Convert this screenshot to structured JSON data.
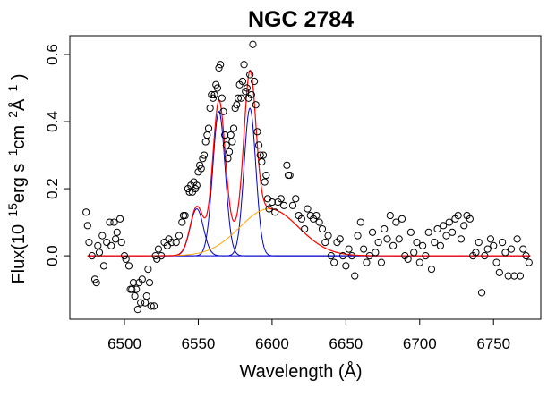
{
  "chart_data": {
    "type": "scatter",
    "title": "NGC 2784",
    "x_label": "Wavelength (Å)",
    "y_label": [
      {
        "text": "Flux(10"
      },
      {
        "text": "−15",
        "sup": true
      },
      {
        "text": "erg s"
      },
      {
        "text": "−1",
        "sup": true
      },
      {
        "text": "cm"
      },
      {
        "text": "−2",
        "sup": true
      },
      {
        "text": "Å"
      },
      {
        "text": "−1",
        "sup": true
      },
      {
        "text": " )"
      }
    ],
    "xlim": [
      6463,
      6782
    ],
    "ylim": [
      -0.189,
      0.656
    ],
    "xticks": [
      6500,
      6550,
      6600,
      6650,
      6700,
      6750
    ],
    "yticks": [
      {
        "value": 0,
        "label": "0.0"
      },
      0.2,
      0.4,
      0.6
    ],
    "series": [
      {
        "color": "#000000",
        "x": [
          6474,
          6475,
          6476,
          6478,
          6480,
          6481,
          6482,
          6483,
          6485,
          6486,
          6488,
          6490,
          6491,
          6493,
          6494,
          6495,
          6497,
          6498,
          6500,
          6501,
          6503,
          6504,
          6505,
          6506,
          6507,
          6508,
          6509,
          6510,
          6511,
          6512,
          6514,
          6515,
          6516,
          6517,
          6518,
          6520,
          6521,
          6522,
          6523,
          6525,
          6527,
          6529,
          6530,
          6532,
          6535,
          6537,
          6539,
          6540,
          6541,
          6543,
          6544,
          6545,
          6546,
          6547,
          6548,
          6549,
          6550,
          6551,
          6552,
          6553,
          6554,
          6555,
          6556,
          6557,
          6558,
          6559,
          6560,
          6561,
          6562,
          6563,
          6564,
          6565,
          6566,
          6567,
          6568,
          6569,
          6570,
          6571,
          6572,
          6573,
          6574,
          6575,
          6576,
          6577,
          6578,
          6579,
          6580,
          6581,
          6582,
          6583,
          6584,
          6585,
          6586,
          6587,
          6588,
          6589,
          6590,
          6591,
          6592,
          6593,
          6594,
          6595,
          6596,
          6597,
          6598,
          6600,
          6602,
          6604,
          6606,
          6608,
          6610,
          6611,
          6612,
          6614,
          6616,
          6618,
          6620,
          6622,
          6624,
          6626,
          6628,
          6630,
          6632,
          6634,
          6636,
          6638,
          6640,
          6642,
          6644,
          6646,
          6648,
          6650,
          6652,
          6654,
          6656,
          6658,
          6660,
          6662,
          6664,
          6666,
          6668,
          6670,
          6672,
          6674,
          6676,
          6678,
          6680,
          6682,
          6684,
          6686,
          6688,
          6690,
          6692,
          6694,
          6696,
          6698,
          6700,
          6702,
          6704,
          6706,
          6708,
          6710,
          6712,
          6714,
          6716,
          6718,
          6720,
          6722,
          6724,
          6726,
          6728,
          6730,
          6732,
          6734,
          6736,
          6738,
          6740,
          6742,
          6744,
          6746,
          6748,
          6750,
          6752,
          6754,
          6756,
          6758,
          6760,
          6762,
          6764,
          6766,
          6768,
          6770,
          6772,
          6774
        ],
        "values": [
          0.13,
          0.09,
          0.04,
          0.0,
          -0.07,
          -0.08,
          0.03,
          0.01,
          0.06,
          -0.03,
          0.04,
          0.1,
          0.03,
          0.1,
          0.05,
          0.07,
          0.11,
          0.04,
          0.0,
          -0.01,
          -0.03,
          -0.1,
          -0.1,
          -0.08,
          -0.12,
          -0.1,
          -0.16,
          -0.08,
          -0.14,
          -0.07,
          -0.14,
          -0.12,
          -0.04,
          -0.08,
          -0.15,
          -0.15,
          0.0,
          -0.01,
          0.02,
          0.0,
          0.04,
          0.03,
          0.05,
          0.04,
          0.04,
          0.06,
          0.1,
          0.12,
          0.12,
          0.2,
          0.19,
          0.21,
          0.19,
          0.22,
          0.2,
          0.21,
          0.25,
          0.27,
          0.26,
          0.29,
          0.3,
          0.34,
          0.36,
          0.38,
          0.44,
          0.48,
          0.47,
          0.48,
          0.51,
          0.5,
          0.56,
          0.57,
          0.47,
          0.43,
          0.36,
          0.33,
          0.29,
          0.31,
          0.36,
          0.34,
          0.38,
          0.44,
          0.45,
          0.47,
          0.51,
          0.47,
          0.52,
          0.57,
          0.49,
          0.5,
          0.47,
          0.54,
          0.48,
          0.63,
          0.52,
          0.45,
          0.37,
          0.33,
          0.3,
          0.28,
          0.3,
          0.22,
          0.24,
          0.17,
          0.14,
          0.16,
          0.13,
          0.16,
          0.17,
          0.15,
          0.27,
          0.24,
          0.24,
          0.15,
          0.17,
          0.12,
          0.11,
          0.08,
          0.14,
          0.12,
          0.11,
          0.12,
          0.1,
          0.08,
          0.04,
          0.06,
          0.0,
          -0.02,
          0.04,
          0.05,
          0.0,
          -0.03,
          0.02,
          0.0,
          -0.06,
          0.06,
          0.1,
          0.02,
          -0.02,
          0.0,
          0.07,
          0.01,
          0.04,
          -0.02,
          0.08,
          0.05,
          0.12,
          0.03,
          0.1,
          0.05,
          0.11,
          0.0,
          -0.01,
          0.07,
          0.01,
          0.04,
          -0.02,
          0.03,
          0.0,
          0.07,
          -0.04,
          0.04,
          0.08,
          0.03,
          0.09,
          0.06,
          0.1,
          0.07,
          0.11,
          0.12,
          0.05,
          0.09,
          0.12,
          0.11,
          0.0,
          0.01,
          0.04,
          -0.11,
          0.0,
          0.02,
          0.05,
          0.03,
          -0.02,
          -0.05,
          0.04,
          0.01,
          -0.06,
          0.02,
          -0.06,
          0.05,
          -0.06,
          0.02,
          0.0,
          -0.02
        ]
      }
    ],
    "fit_range": [
      6475,
      6775
    ],
    "components": [
      {
        "center": 6549,
        "amplitude": 0.14,
        "sigma": 4.5,
        "color": "#0000cc"
      },
      {
        "center": 6564,
        "amplitude": 0.43,
        "sigma": 4.2,
        "color": "#0000cc"
      },
      {
        "center": 6585,
        "amplitude": 0.44,
        "sigma": 4.0,
        "color": "#0000cc"
      },
      {
        "center": 6598,
        "amplitude": 0.14,
        "sigma": 20,
        "color": "#ffa500"
      }
    ],
    "total_color": "#ff0000"
  }
}
